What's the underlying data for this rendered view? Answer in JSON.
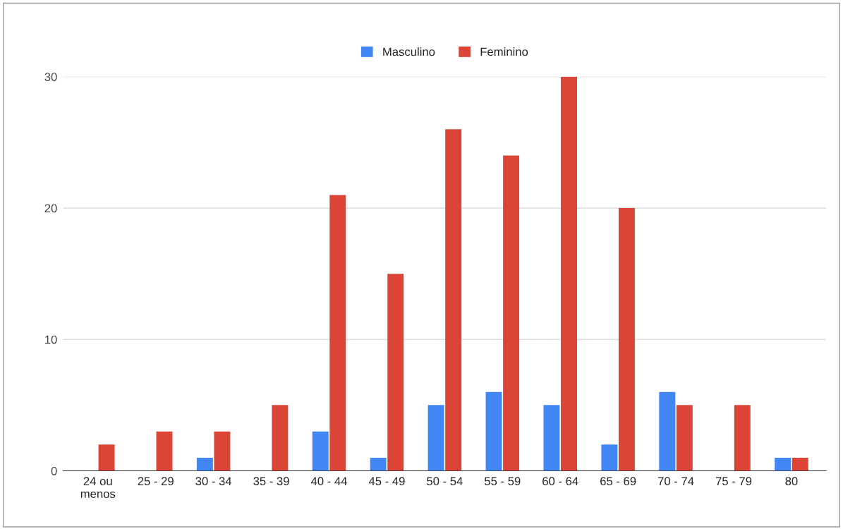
{
  "chart_data": {
    "type": "bar",
    "categories": [
      "24 ou\nmenos",
      "25 - 29",
      "30 - 34",
      "35 - 39",
      "40 - 44",
      "45 - 49",
      "50 - 54",
      "55 - 59",
      "60 - 64",
      "65 - 69",
      "70 - 74",
      "75 - 79",
      "80"
    ],
    "series": [
      {
        "name": "Masculino",
        "color": "#4285f4",
        "values": [
          0,
          0,
          1,
          0,
          3,
          1,
          5,
          6,
          5,
          2,
          6,
          0,
          1
        ]
      },
      {
        "name": "Feminino",
        "color": "#db4437",
        "values": [
          2,
          3,
          3,
          5,
          21,
          15,
          26,
          24,
          30,
          20,
          5,
          5,
          1
        ]
      }
    ],
    "ylim": [
      0,
      30
    ],
    "yticks": [
      0,
      10,
      20,
      30
    ],
    "grid": "y",
    "legend": "top"
  }
}
